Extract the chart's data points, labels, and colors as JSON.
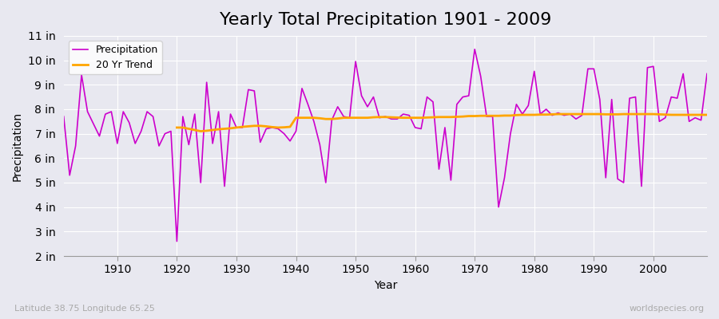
{
  "title": "Yearly Total Precipitation 1901 - 2009",
  "xlabel": "Year",
  "ylabel": "Precipitation",
  "background_color": "#e8e8f0",
  "plot_bg_color": "#e8e8f0",
  "precipitation_color": "#cc00cc",
  "trend_color": "#ffa500",
  "ylim": [
    2,
    11
  ],
  "yticks": [
    2,
    3,
    4,
    5,
    6,
    7,
    8,
    9,
    10,
    11
  ],
  "ytick_labels": [
    "2 in",
    "3 in",
    "4 in",
    "5 in",
    "6 in",
    "7 in",
    "8 in",
    "9 in",
    "10 in",
    "11 in"
  ],
  "years": [
    1901,
    1902,
    1903,
    1904,
    1905,
    1906,
    1907,
    1908,
    1909,
    1910,
    1911,
    1912,
    1913,
    1914,
    1915,
    1916,
    1917,
    1918,
    1919,
    1920,
    1921,
    1922,
    1923,
    1924,
    1925,
    1926,
    1927,
    1928,
    1929,
    1930,
    1931,
    1932,
    1933,
    1934,
    1935,
    1936,
    1937,
    1938,
    1939,
    1940,
    1941,
    1942,
    1943,
    1944,
    1945,
    1946,
    1947,
    1948,
    1949,
    1950,
    1951,
    1952,
    1953,
    1954,
    1955,
    1956,
    1957,
    1958,
    1959,
    1960,
    1961,
    1962,
    1963,
    1964,
    1965,
    1966,
    1967,
    1968,
    1969,
    1970,
    1971,
    1972,
    1973,
    1974,
    1975,
    1976,
    1977,
    1978,
    1979,
    1980,
    1981,
    1982,
    1983,
    1984,
    1985,
    1986,
    1987,
    1988,
    1989,
    1990,
    1991,
    1992,
    1993,
    1994,
    1995,
    1996,
    1997,
    1998,
    1999,
    2000,
    2001,
    2002,
    2003,
    2004,
    2005,
    2006,
    2007,
    2008,
    2009
  ],
  "precipitation": [
    7.7,
    5.3,
    6.5,
    9.4,
    7.9,
    7.4,
    6.9,
    7.8,
    7.9,
    6.6,
    7.9,
    7.45,
    6.6,
    7.1,
    7.9,
    7.7,
    6.5,
    7.0,
    7.1,
    2.6,
    7.7,
    6.55,
    7.8,
    5.0,
    9.1,
    6.6,
    7.9,
    4.85,
    7.8,
    7.25,
    7.25,
    8.8,
    8.75,
    6.65,
    7.2,
    7.25,
    7.2,
    7.0,
    6.7,
    7.1,
    8.85,
    8.2,
    7.5,
    6.55,
    5.0,
    7.55,
    8.1,
    7.7,
    7.65,
    9.95,
    8.55,
    8.1,
    8.5,
    7.65,
    7.7,
    7.6,
    7.6,
    7.8,
    7.75,
    7.25,
    7.2,
    8.5,
    8.3,
    5.55,
    7.25,
    5.1,
    8.2,
    8.5,
    8.55,
    10.45,
    9.35,
    7.7,
    7.7,
    4.0,
    5.2,
    7.0,
    8.2,
    7.8,
    8.15,
    9.55,
    7.8,
    8.0,
    7.75,
    7.85,
    7.75,
    7.8,
    7.6,
    7.75,
    9.65,
    9.65,
    8.4,
    5.2,
    8.4,
    5.15,
    5.0,
    8.45,
    8.5,
    4.85,
    9.7,
    9.75,
    7.5,
    7.65,
    8.5,
    8.45,
    9.45,
    7.5,
    7.65,
    7.55,
    9.45
  ],
  "trend_years": [
    1920,
    1921,
    1922,
    1923,
    1924,
    1925,
    1926,
    1927,
    1928,
    1929,
    1930,
    1931,
    1932,
    1933,
    1934,
    1935,
    1936,
    1937,
    1938,
    1939,
    1940,
    1941,
    1942,
    1943,
    1944,
    1945,
    1946,
    1947,
    1948,
    1949,
    1950,
    1951,
    1952,
    1953,
    1954,
    1955,
    1956,
    1957,
    1958,
    1959,
    1960,
    1961,
    1962,
    1963,
    1964,
    1965,
    1966,
    1967,
    1968,
    1969,
    1970,
    1971,
    1972,
    1973,
    1974,
    1975,
    1976,
    1977,
    1978,
    1979,
    1980,
    1981,
    1982,
    1983,
    1984,
    1985,
    1986,
    1987,
    1988,
    1989,
    1990,
    1991,
    1992,
    1993,
    1994,
    1995,
    1996,
    1997,
    1998,
    1999,
    2000,
    2001,
    2002,
    2003,
    2004,
    2005,
    2006,
    2007,
    2008,
    2009
  ],
  "trend": [
    7.25,
    7.25,
    7.2,
    7.15,
    7.1,
    7.12,
    7.15,
    7.18,
    7.2,
    7.22,
    7.25,
    7.28,
    7.3,
    7.32,
    7.32,
    7.3,
    7.27,
    7.25,
    7.26,
    7.28,
    7.65,
    7.65,
    7.65,
    7.65,
    7.63,
    7.6,
    7.6,
    7.62,
    7.65,
    7.65,
    7.65,
    7.65,
    7.65,
    7.67,
    7.68,
    7.68,
    7.67,
    7.66,
    7.65,
    7.65,
    7.65,
    7.65,
    7.66,
    7.67,
    7.68,
    7.68,
    7.68,
    7.69,
    7.7,
    7.72,
    7.72,
    7.73,
    7.73,
    7.73,
    7.73,
    7.74,
    7.74,
    7.76,
    7.77,
    7.77,
    7.77,
    7.78,
    7.78,
    7.79,
    7.8,
    7.8,
    7.8,
    7.8,
    7.8,
    7.8,
    7.8,
    7.8,
    7.79,
    7.79,
    7.79,
    7.8,
    7.8,
    7.8,
    7.8,
    7.8,
    7.8,
    7.79,
    7.78,
    7.77,
    7.77,
    7.77,
    7.77,
    7.77,
    7.77,
    7.77
  ],
  "watermark": "worldspecies.org",
  "credit": "Latitude 38.75 Longitude 65.25",
  "title_fontsize": 16,
  "axis_fontsize": 10,
  "legend_fontsize": 9
}
